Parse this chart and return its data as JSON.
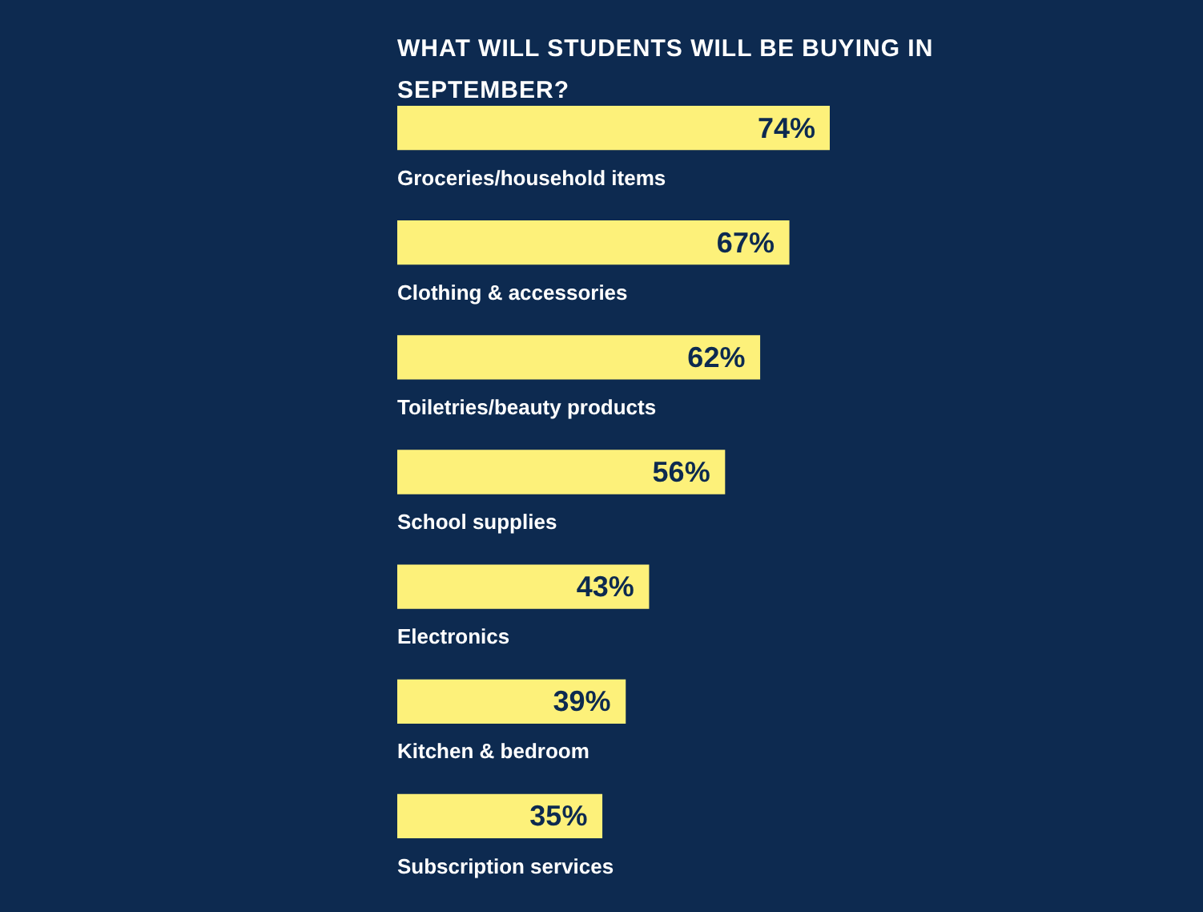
{
  "chart_data": {
    "type": "bar",
    "orientation": "horizontal",
    "title": "WHAT WILL STUDENTS WILL BE BUYING IN SEPTEMBER?",
    "categories": [
      "Groceries/household items",
      "Clothing & accessories",
      "Toiletries/beauty products",
      "School supplies",
      "Electronics",
      "Kitchen & bedroom",
      "Subscription services"
    ],
    "values": [
      74,
      67,
      62,
      56,
      43,
      39,
      35
    ],
    "value_labels": [
      "74%",
      "67%",
      "62%",
      "56%",
      "43%",
      "39%",
      "35%"
    ],
    "color": "#fdf17a"
  }
}
